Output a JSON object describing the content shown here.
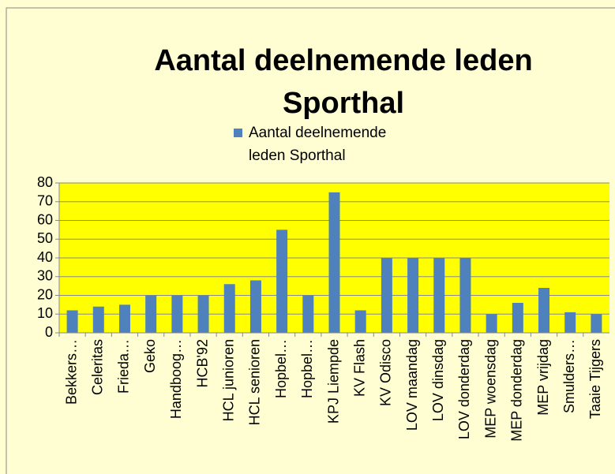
{
  "chart_data": {
    "type": "bar",
    "title": "Aantal deelnemende leden Sporthal",
    "categories": [
      "Bekkers…",
      "Celeritas",
      "Frieda…",
      "Geko",
      "Handboog…",
      "HCB'92",
      "HCL junioren",
      "HCL senioren",
      "Hopbel…",
      "Hopbel…",
      "KPJ Liempde",
      "KV Flash",
      "KV Odisco",
      "LOV maandag",
      "LOV dinsdag",
      "LOV donderdag",
      "MEP woensdag",
      "MEP donderdag",
      "MEP vrijdag",
      "Smulders…",
      "Taaie Tijgers"
    ],
    "series": [
      {
        "name": "Aantal deelnemende leden Sporthal",
        "color": "#4f81bd",
        "values": [
          12,
          14,
          15,
          20,
          20,
          20,
          26,
          28,
          55,
          20,
          75,
          12,
          40,
          40,
          40,
          40,
          10,
          16,
          24,
          11,
          10
        ]
      }
    ],
    "ylim": [
      0,
      80
    ],
    "yticks": [
      0,
      10,
      20,
      30,
      40,
      50,
      60,
      70,
      80
    ],
    "grid": true,
    "legend": "top"
  }
}
